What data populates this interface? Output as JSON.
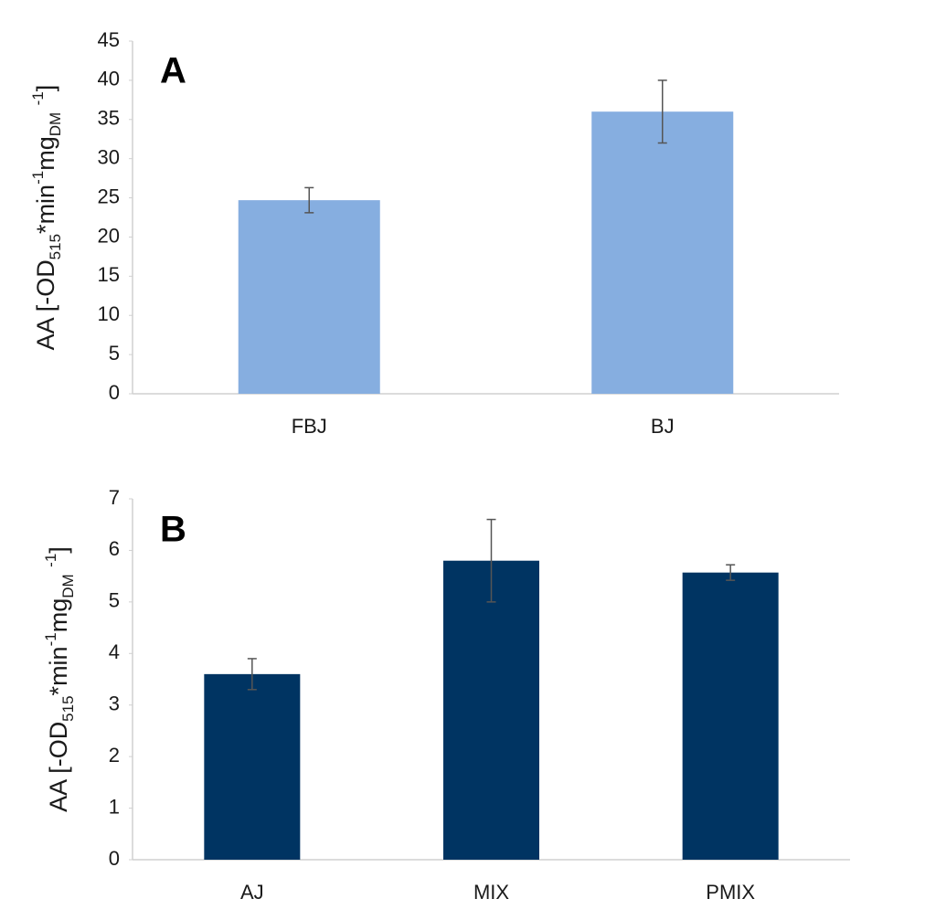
{
  "chart_data": [
    {
      "type": "bar",
      "panel_label": "A",
      "ylabel": [
        {
          "text": "AA [-OD"
        },
        {
          "text": "515",
          "shift": "sub"
        },
        {
          "text": "*min"
        },
        {
          "text": "-1",
          "shift": "super"
        },
        {
          "text": "mg"
        },
        {
          "text": "DM",
          "shift": "sub"
        },
        {
          "text": " "
        },
        {
          "text": "-1",
          "shift": "super"
        },
        {
          "text": "]"
        }
      ],
      "categories": [
        "FBJ",
        "BJ"
      ],
      "values": [
        24.7,
        36
      ],
      "errors": [
        1.6,
        4
      ],
      "color": "#86aee0",
      "ylim": [
        0,
        45
      ],
      "yticks": [
        0,
        5,
        10,
        15,
        20,
        25,
        30,
        35,
        40,
        45
      ],
      "grid": false
    },
    {
      "type": "bar",
      "panel_label": "B",
      "ylabel": [
        {
          "text": "AA [-OD"
        },
        {
          "text": "515",
          "shift": "sub"
        },
        {
          "text": "*min"
        },
        {
          "text": "-1",
          "shift": "super"
        },
        {
          "text": "mg"
        },
        {
          "text": "DM",
          "shift": "sub"
        },
        {
          "text": " "
        },
        {
          "text": "-1",
          "shift": "super"
        },
        {
          "text": "]"
        }
      ],
      "categories": [
        "AJ",
        "MIX",
        "PMIX"
      ],
      "values": [
        3.6,
        5.8,
        5.57
      ],
      "errors": [
        0.3,
        0.8,
        0.15
      ],
      "color": "#003462",
      "ylim": [
        0,
        7
      ],
      "yticks": [
        0,
        1,
        2,
        3,
        4,
        5,
        6,
        7
      ],
      "grid": false
    }
  ]
}
